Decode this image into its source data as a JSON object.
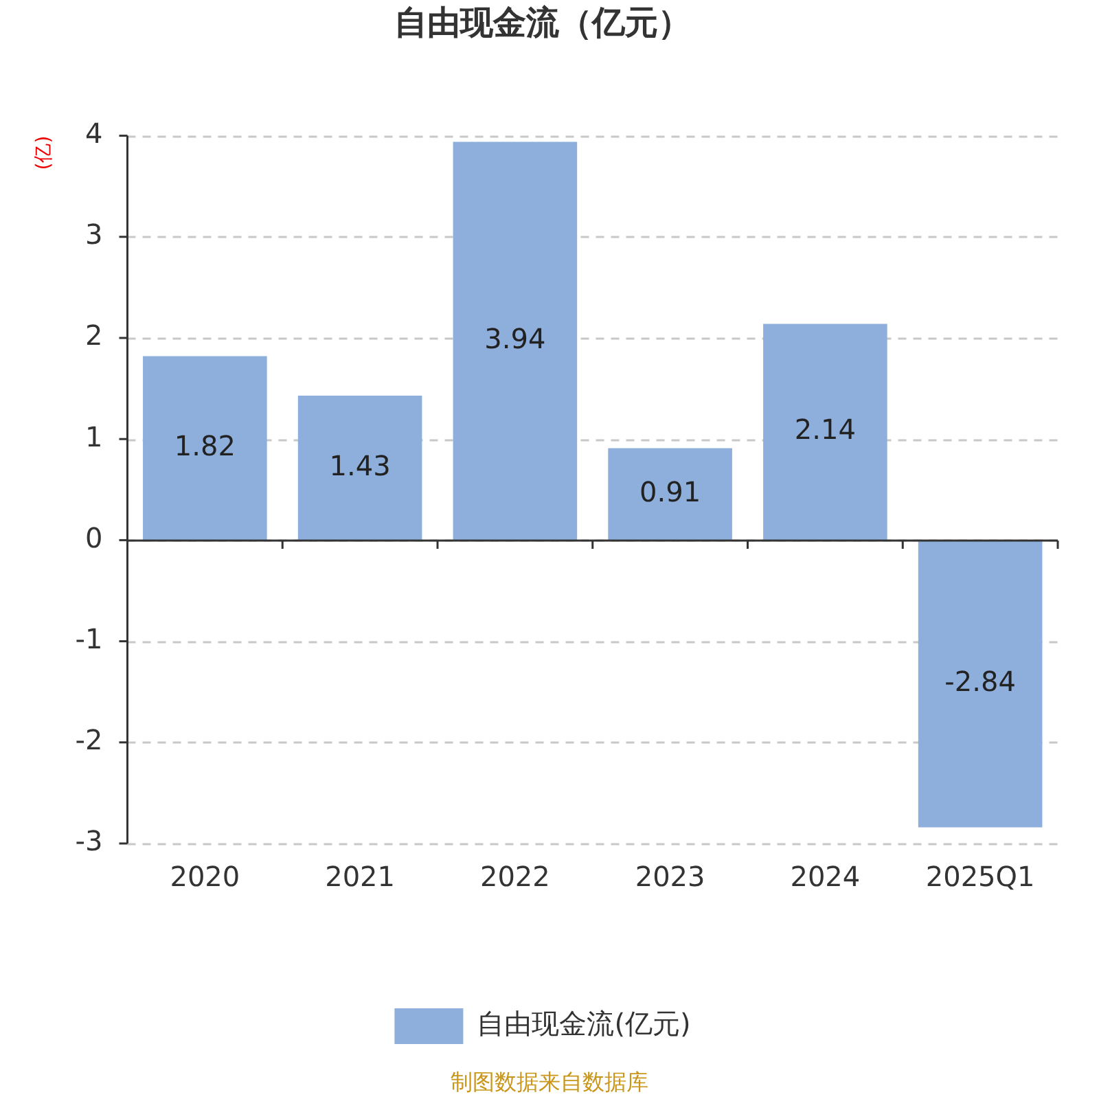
{
  "chart_data": {
    "type": "bar",
    "title": "自由现金流（亿元）",
    "ylabel": "(亿)",
    "categories": [
      "2020",
      "2021",
      "2022",
      "2023",
      "2024",
      "2025Q1"
    ],
    "series": [
      {
        "name": "自由现金流(亿元)",
        "color": "#8eaedb",
        "values": [
          1.82,
          1.43,
          3.94,
          0.91,
          2.14,
          -2.84
        ]
      }
    ],
    "ylim": [
      -3,
      4
    ],
    "yticks": [
      -3,
      -2,
      -1,
      0,
      1,
      2,
      3,
      4
    ],
    "grid": "y",
    "legend": "bottom",
    "data_labels": true,
    "annotations": [
      "制图数据来自数据库"
    ]
  }
}
